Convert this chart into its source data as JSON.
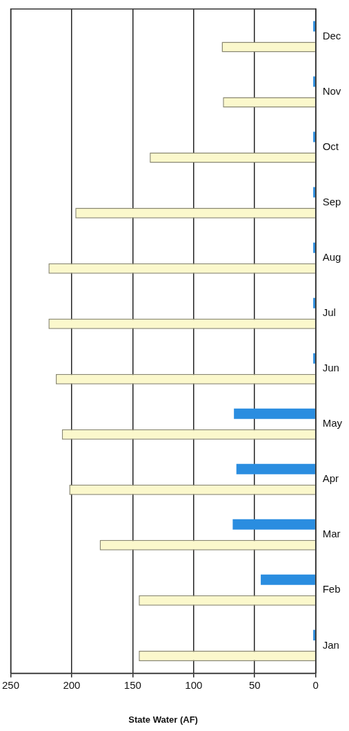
{
  "chart_data": {
    "type": "bar",
    "orientation": "horizontal",
    "categories": [
      "Dec",
      "Nov",
      "Oct",
      "Sep",
      "Aug",
      "Jul",
      "Jun",
      "May",
      "Apr",
      "Mar",
      "Feb",
      "Jan"
    ],
    "series": [
      {
        "color": "#2a8de0",
        "values": [
          2,
          2,
          2,
          2,
          2,
          2,
          2,
          67,
          65,
          68,
          45,
          2
        ]
      },
      {
        "color": "#fbf8cc",
        "values": [
          77,
          76,
          136,
          197,
          219,
          219,
          213,
          208,
          202,
          177,
          145,
          145
        ]
      }
    ],
    "xlabel": "State Water (AF)",
    "xlim": [
      250,
      0
    ],
    "xticks": [
      250,
      200,
      150,
      100,
      50,
      0
    ],
    "grid": "x",
    "legend": false
  }
}
